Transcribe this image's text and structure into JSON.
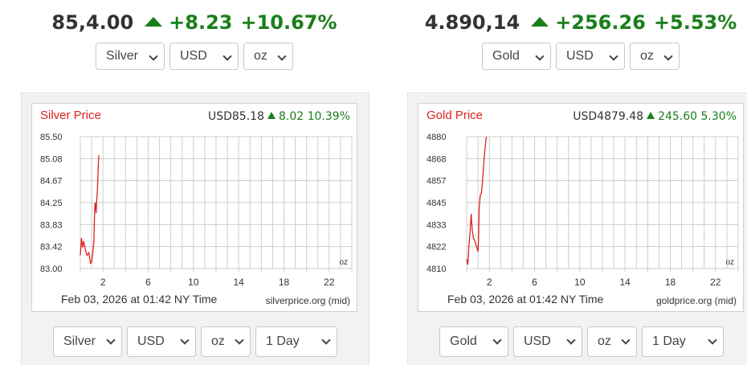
{
  "widgets": [
    {
      "ticker": {
        "price": "85,4.00",
        "change": "+8.23",
        "percent": "+10.67%"
      },
      "top_selects": {
        "metal": "Silver",
        "currency": "USD",
        "unit": "oz"
      },
      "chart": {
        "title": "Silver Price",
        "quote_currency_price": "USD85.18",
        "quote_change": "8.02",
        "quote_percent": "10.39%",
        "unit_label": "oz",
        "timestamp": "Feb 03, 2026 at 01:42 NY Time",
        "source": "silverprice.org (mid)"
      },
      "bottom_selects": {
        "metal": "Silver",
        "currency": "USD",
        "unit": "oz",
        "period": "1 Day"
      }
    },
    {
      "ticker": {
        "price": "4.890,14",
        "change": "+256.26",
        "percent": "+5.53%"
      },
      "top_selects": {
        "metal": "Gold",
        "currency": "USD",
        "unit": "oz"
      },
      "chart": {
        "title": "Gold Price",
        "quote_currency_price": "USD4879.48",
        "quote_change": "245.60",
        "quote_percent": "5.30%",
        "unit_label": "oz",
        "timestamp": "Feb 03, 2026 at 01:42 NY Time",
        "source": "goldprice.org (mid)"
      },
      "bottom_selects": {
        "metal": "Gold",
        "currency": "USD",
        "unit": "oz",
        "period": "1 Day"
      }
    }
  ],
  "colors": {
    "up": "#1a7f1a",
    "line": "#e02020",
    "title": "#e02020",
    "grid": "#cccccc"
  },
  "icons": {
    "up_arrow": "triangle-up",
    "chevron": "chevron-down"
  },
  "chart_data": [
    {
      "type": "line",
      "title": "Silver Price",
      "xlabel": "",
      "ylabel": "",
      "x_ticks": [
        2,
        6,
        10,
        14,
        18,
        22
      ],
      "y_ticks": [
        "85.50",
        "85.08",
        "84.67",
        "84.25",
        "83.83",
        "83.42",
        "83.00"
      ],
      "xlim": [
        0,
        24
      ],
      "ylim": [
        83.0,
        85.5
      ],
      "grid": true,
      "series": [
        {
          "x": [
            0.0,
            0.1,
            0.2,
            0.3,
            0.45,
            0.6,
            0.75,
            0.9,
            1.0,
            1.1,
            1.2,
            1.25,
            1.3,
            1.35,
            1.4,
            1.45,
            1.5,
            1.55,
            1.6,
            1.65
          ],
          "y": [
            83.25,
            83.58,
            83.4,
            83.52,
            83.35,
            83.25,
            83.3,
            83.1,
            83.12,
            83.3,
            83.52,
            83.95,
            84.25,
            84.2,
            84.05,
            84.3,
            84.45,
            84.7,
            85.0,
            85.15
          ]
        }
      ]
    },
    {
      "type": "line",
      "title": "Gold Price",
      "xlabel": "",
      "ylabel": "",
      "x_ticks": [
        2,
        6,
        10,
        14,
        18,
        22
      ],
      "y_ticks": [
        "4880",
        "4868",
        "4857",
        "4845",
        "4833",
        "4822",
        "4810"
      ],
      "xlim": [
        0,
        24
      ],
      "ylim": [
        4810,
        4880
      ],
      "grid": true,
      "series": [
        {
          "x": [
            0.0,
            0.1,
            0.2,
            0.3,
            0.4,
            0.5,
            0.6,
            0.7,
            0.8,
            0.9,
            1.0,
            1.05,
            1.1,
            1.2,
            1.3,
            1.4,
            1.5,
            1.6,
            1.7,
            1.75
          ],
          "y": [
            4815,
            4812,
            4822,
            4829,
            4839,
            4830,
            4826,
            4825,
            4823,
            4821,
            4819,
            4826,
            4842,
            4849,
            4850,
            4856,
            4865,
            4872,
            4878,
            4880
          ]
        }
      ]
    }
  ]
}
